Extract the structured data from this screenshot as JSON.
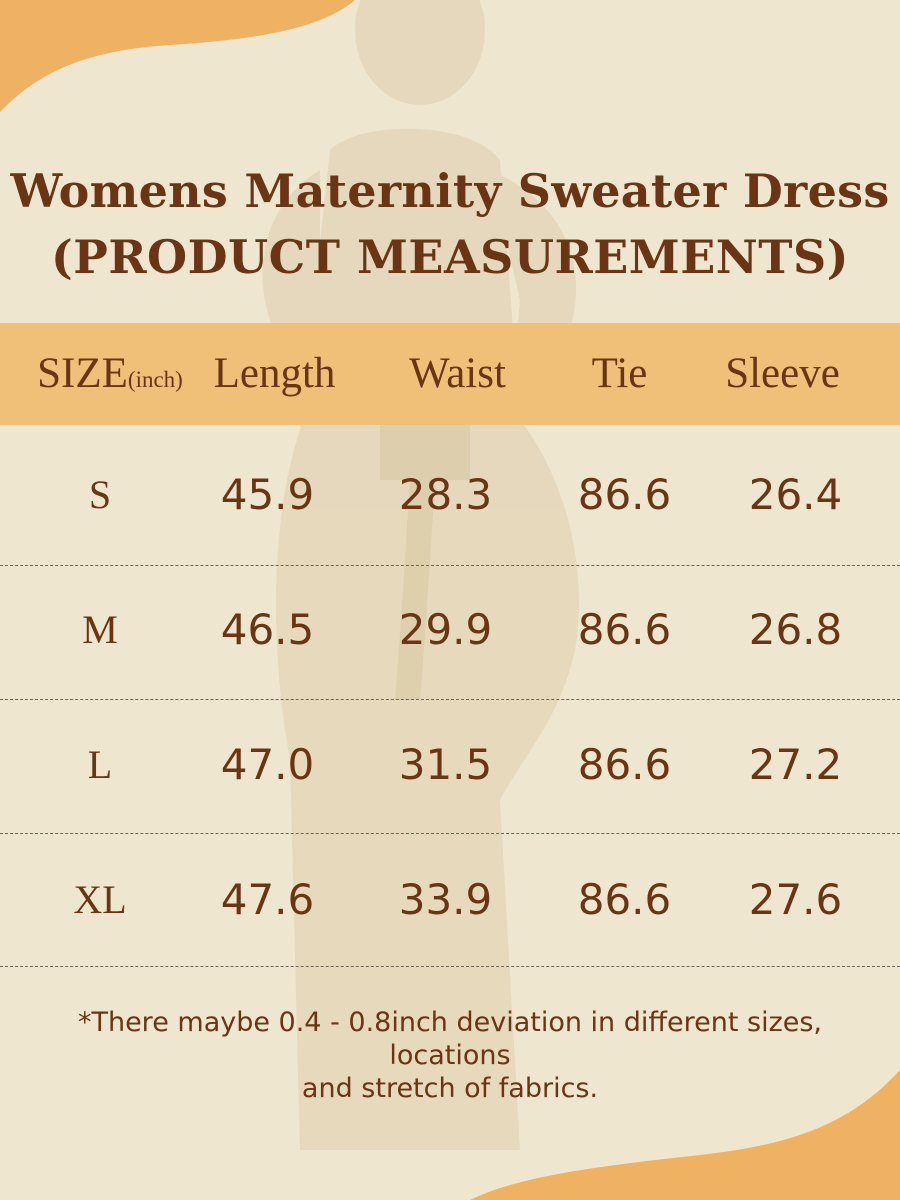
{
  "title": {
    "line1": "Womens Maternity Sweater Dress",
    "line2": "(PRODUCT MEASUREMENTS)"
  },
  "table": {
    "headers": {
      "size": "SIZE",
      "size_unit": "(inch)",
      "length": "Length",
      "waist": "Waist",
      "tie": "Tie",
      "sleeve": "Sleeve"
    },
    "rows": [
      {
        "size": "S",
        "length": "45.9",
        "waist": "28.3",
        "tie": "86.6",
        "sleeve": "26.4"
      },
      {
        "size": "M",
        "length": "46.5",
        "waist": "29.9",
        "tie": "86.6",
        "sleeve": "26.8"
      },
      {
        "size": "L",
        "length": "47.0",
        "waist": "31.5",
        "tie": "86.6",
        "sleeve": "27.2"
      },
      {
        "size": "XL",
        "length": "47.6",
        "waist": "33.9",
        "tie": "86.6",
        "sleeve": "27.6"
      }
    ]
  },
  "footnote": {
    "line1": "*There maybe 0.4 - 0.8inch deviation in different sizes, locations",
    "line2": "and stretch of fabrics."
  },
  "colors": {
    "background": "#efe6cf",
    "accent_orange": "#efb263",
    "header_band": "#f0c078",
    "text_brown": "#6a3515"
  }
}
